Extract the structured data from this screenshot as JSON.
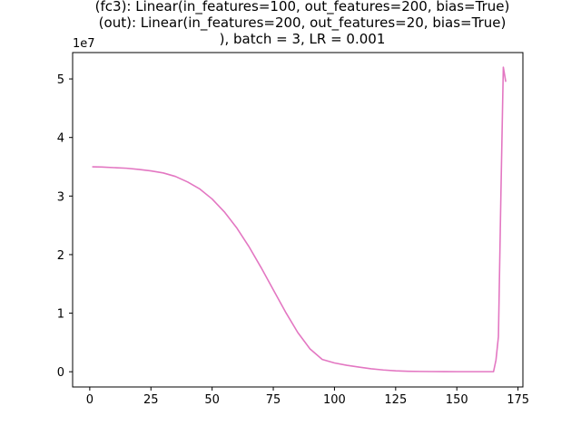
{
  "chart_data": {
    "type": "line",
    "title_lines": [
      "(fc3): Linear(in_features=100, out_features=200, bias=True)",
      "(out): Linear(in_features=200, out_features=20, bias=True)",
      "), batch = 3, LR = 0.001"
    ],
    "xlabel": "",
    "ylabel": "",
    "xlim": [
      -7,
      177
    ],
    "ylim": [
      -2600000.0,
      54500000.0
    ],
    "x_ticks": [
      0,
      25,
      50,
      75,
      100,
      125,
      150,
      175
    ],
    "y_ticks": [
      0,
      10000000,
      20000000,
      30000000,
      40000000,
      50000000
    ],
    "y_tick_labels": [
      "0",
      "1",
      "2",
      "3",
      "4",
      "5"
    ],
    "y_offset_label": "1e7",
    "grid": false,
    "series": [
      {
        "color": "#e377c2",
        "x": [
          1,
          5,
          10,
          15,
          20,
          25,
          30,
          35,
          40,
          45,
          50,
          55,
          60,
          65,
          70,
          75,
          80,
          85,
          90,
          95,
          100,
          105,
          110,
          115,
          120,
          125,
          130,
          135,
          140,
          145,
          150,
          155,
          160,
          165,
          166,
          167,
          168,
          169,
          170
        ],
        "y": [
          35000000,
          34950000,
          34850000,
          34750000,
          34550000,
          34300000,
          33950000,
          33350000,
          32400000,
          31200000,
          29500000,
          27300000,
          24600000,
          21400000,
          17800000,
          14000000,
          10200000,
          6700000,
          3900000,
          2100000,
          1500000,
          1100000,
          800000,
          500000,
          300000,
          150000,
          80000,
          50000,
          30000,
          20000,
          10000,
          10000,
          10000,
          10000,
          2000000,
          6000000,
          30000000,
          52000000,
          49500000
        ]
      }
    ]
  }
}
